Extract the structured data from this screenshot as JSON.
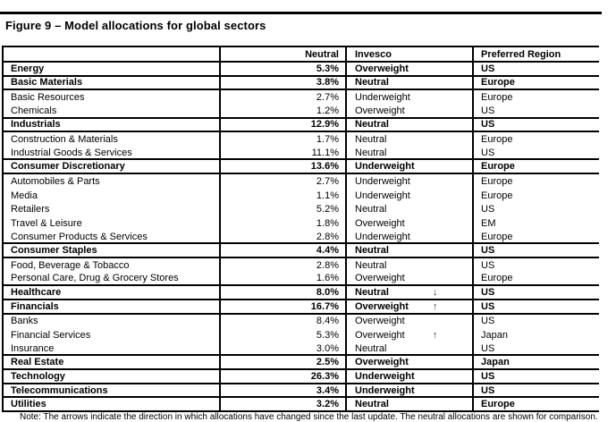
{
  "page": {
    "title": "Figure 9 – Model allocations for global sectors",
    "note": "Note: The arrows indicate the direction in which allocations have changed since the last update. The neutral allocations are shown for comparison."
  },
  "colors": {
    "text": "#000000",
    "border": "#000000",
    "background": "#ffffff",
    "arrow": "#3a3a3a"
  },
  "table": {
    "headers": {
      "sector": "",
      "neutral": "Neutral",
      "invesco": "Invesco",
      "region": "Preferred Region"
    },
    "rows": [
      {
        "label": "Energy",
        "neutral": "5.3%",
        "invesco": "Overweight",
        "arrow": "",
        "region": "US",
        "bold": true
      },
      {
        "label": "Basic Materials",
        "neutral": "3.8%",
        "invesco": "Neutral",
        "arrow": "",
        "region": "Europe",
        "bold": true
      },
      {
        "label": "Basic Resources",
        "neutral": "2.7%",
        "invesco": "Underweight",
        "arrow": "",
        "region": "Europe",
        "bold": false
      },
      {
        "label": "Chemicals",
        "neutral": "1.2%",
        "invesco": "Overweight",
        "arrow": "",
        "region": "US",
        "bold": false
      },
      {
        "label": "Industrials",
        "neutral": "12.9%",
        "invesco": "Neutral",
        "arrow": "",
        "region": "US",
        "bold": true
      },
      {
        "label": "Construction & Materials",
        "neutral": "1.7%",
        "invesco": "Neutral",
        "arrow": "",
        "region": "Europe",
        "bold": false
      },
      {
        "label": "Industrial Goods & Services",
        "neutral": "11.1%",
        "invesco": "Neutral",
        "arrow": "",
        "region": "US",
        "bold": false
      },
      {
        "label": "Consumer Discretionary",
        "neutral": "13.6%",
        "invesco": "Underweight",
        "arrow": "",
        "region": "Europe",
        "bold": true
      },
      {
        "label": "Automobiles & Parts",
        "neutral": "2.7%",
        "invesco": "Underweight",
        "arrow": "",
        "region": "Europe",
        "bold": false
      },
      {
        "label": "Media",
        "neutral": "1.1%",
        "invesco": "Underweight",
        "arrow": "",
        "region": "Europe",
        "bold": false
      },
      {
        "label": "Retailers",
        "neutral": "5.2%",
        "invesco": "Neutral",
        "arrow": "",
        "region": "US",
        "bold": false
      },
      {
        "label": "Travel & Leisure",
        "neutral": "1.8%",
        "invesco": "Overweight",
        "arrow": "",
        "region": "EM",
        "bold": false
      },
      {
        "label": "Consumer Products & Services",
        "neutral": "2.8%",
        "invesco": "Underweight",
        "arrow": "",
        "region": "Europe",
        "bold": false
      },
      {
        "label": "Consumer Staples",
        "neutral": "4.4%",
        "invesco": "Neutral",
        "arrow": "",
        "region": "US",
        "bold": true
      },
      {
        "label": "Food, Beverage & Tobacco",
        "neutral": "2.8%",
        "invesco": "Neutral",
        "arrow": "",
        "region": "US",
        "bold": false
      },
      {
        "label": "Personal Care, Drug & Grocery Stores",
        "neutral": "1.6%",
        "invesco": "Overweight",
        "arrow": "",
        "region": "Europe",
        "bold": false
      },
      {
        "label": "Healthcare",
        "neutral": "8.0%",
        "invesco": "Neutral",
        "arrow": "↓",
        "region": "US",
        "bold": true
      },
      {
        "label": "Financials",
        "neutral": "16.7%",
        "invesco": "Overweight",
        "arrow": "↑",
        "region": "US",
        "bold": true
      },
      {
        "label": "Banks",
        "neutral": "8.4%",
        "invesco": "Overweight",
        "arrow": "",
        "region": "US",
        "bold": false
      },
      {
        "label": "Financial Services",
        "neutral": "5.3%",
        "invesco": "Overweight",
        "arrow": "↑",
        "region": "Japan",
        "bold": false
      },
      {
        "label": "Insurance",
        "neutral": "3.0%",
        "invesco": "Neutral",
        "arrow": "",
        "region": "US",
        "bold": false
      },
      {
        "label": "Real Estate",
        "neutral": "2.5%",
        "invesco": "Overweight",
        "arrow": "",
        "region": "Japan",
        "bold": true
      },
      {
        "label": "Technology",
        "neutral": "26.3%",
        "invesco": "Underweight",
        "arrow": "",
        "region": "US",
        "bold": true
      },
      {
        "label": "Telecommunications",
        "neutral": "3.4%",
        "invesco": "Underweight",
        "arrow": "",
        "region": "US",
        "bold": true
      },
      {
        "label": "Utilities",
        "neutral": "3.2%",
        "invesco": "Neutral",
        "arrow": "",
        "region": "Europe",
        "bold": true
      }
    ]
  }
}
